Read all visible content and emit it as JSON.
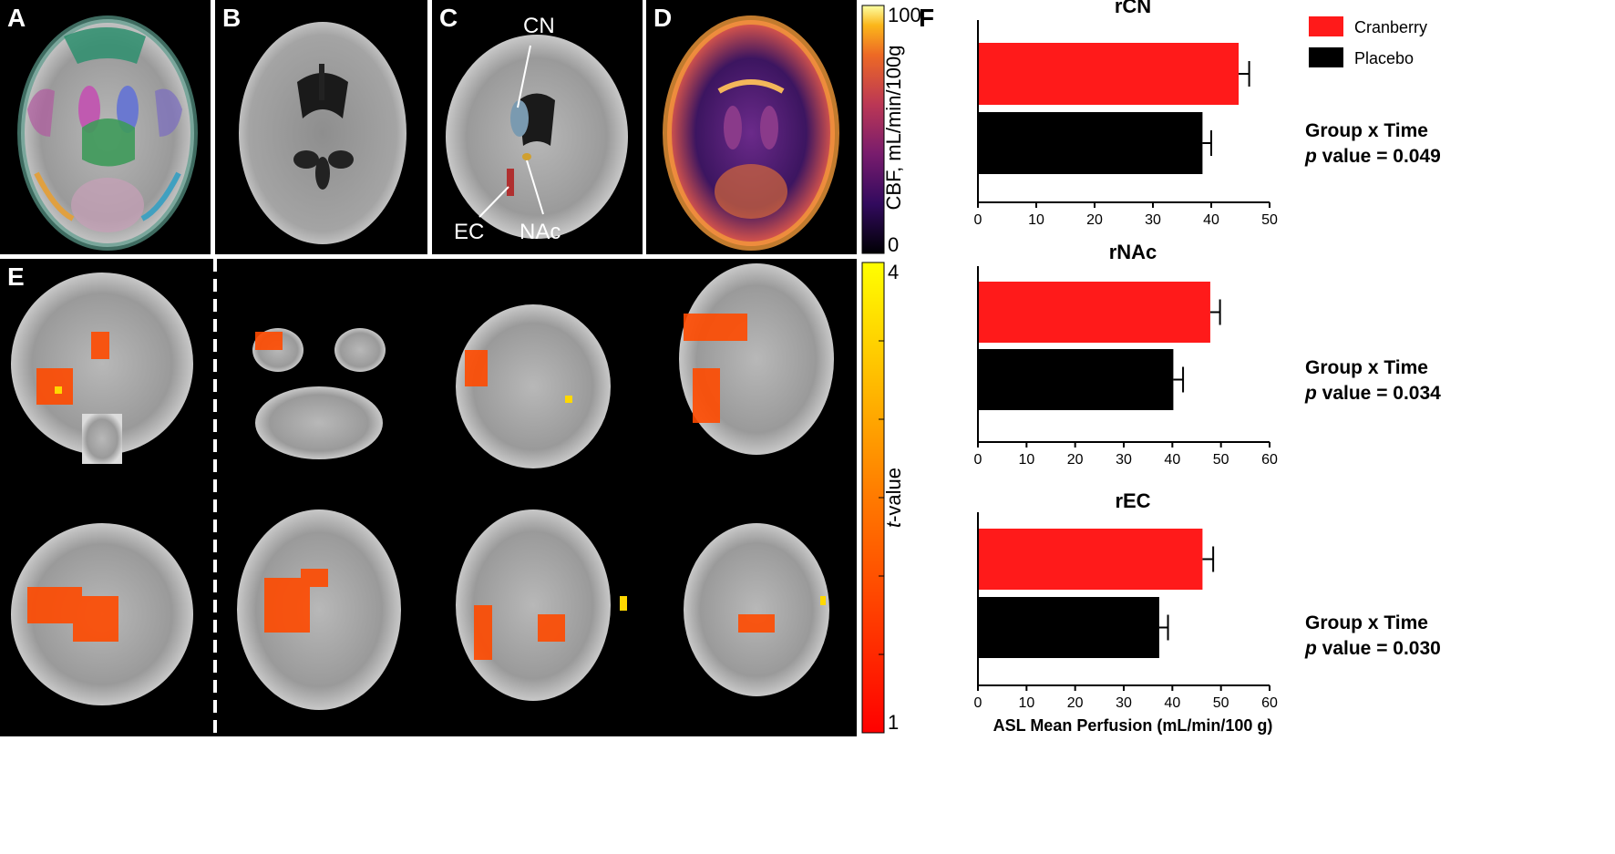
{
  "panels": {
    "a": {
      "label": "A"
    },
    "b": {
      "label": "B"
    },
    "c": {
      "label": "C",
      "callouts": {
        "cn": "CN",
        "ec": "EC",
        "nac": "NAc"
      }
    },
    "d": {
      "label": "D"
    },
    "e": {
      "label": "E"
    },
    "f": {
      "label": "F"
    }
  },
  "colorbars": {
    "cbf": {
      "title": "CBF, mL/min/100g",
      "max": "100",
      "min": "0",
      "palette": "inferno"
    },
    "tvalue": {
      "title_italic": "t",
      "title_rest": "-value",
      "max": "4",
      "min": "1",
      "palette": "red-yellow"
    }
  },
  "legend": {
    "items": [
      {
        "label": "Cranberry",
        "color": "#ff1a1a"
      },
      {
        "label": "Placebo",
        "color": "#000000"
      }
    ]
  },
  "xlabel": "ASL Mean Perfusion (mL/min/100 g)",
  "colors": {
    "cranberry": "#ff1a1a",
    "placebo": "#000000",
    "grid_bg": "#000000"
  },
  "chart_data": [
    {
      "type": "bar",
      "orientation": "horizontal",
      "title": "rCN",
      "categories": [
        "Cranberry",
        "Placebo"
      ],
      "values": [
        44.7,
        38.5
      ],
      "errors": [
        1.8,
        1.5
      ],
      "xlim": [
        0,
        50
      ],
      "xticks": [
        "0",
        "10",
        "20",
        "30",
        "40",
        "50"
      ],
      "stat_line1": "Group x Time",
      "stat_line2_italic": "p",
      "stat_line2_rest": " value = 0.049"
    },
    {
      "type": "bar",
      "orientation": "horizontal",
      "title": "rNAc",
      "categories": [
        "Cranberry",
        "Placebo"
      ],
      "values": [
        47.8,
        40.2
      ],
      "errors": [
        2.0,
        2.0
      ],
      "xlim": [
        0,
        60
      ],
      "xticks": [
        "0",
        "10",
        "20",
        "30",
        "40",
        "50",
        "60"
      ],
      "stat_line1": "Group x Time",
      "stat_line2_italic": "p",
      "stat_line2_rest": " value = 0.034"
    },
    {
      "type": "bar",
      "orientation": "horizontal",
      "title": "rEC",
      "categories": [
        "Cranberry",
        "Placebo"
      ],
      "values": [
        46.2,
        37.3
      ],
      "errors": [
        2.2,
        1.8
      ],
      "xlim": [
        0,
        60
      ],
      "xticks": [
        "0",
        "10",
        "20",
        "30",
        "40",
        "50",
        "60"
      ],
      "stat_line1": "Group x Time",
      "stat_line2_italic": "p",
      "stat_line2_rest": " value = 0.030"
    }
  ]
}
